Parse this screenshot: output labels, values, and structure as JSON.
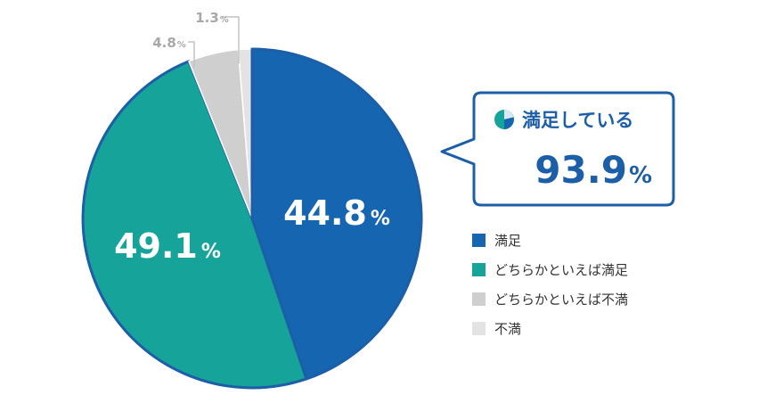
{
  "chart_data": {
    "type": "pie",
    "title": "",
    "categories": [
      "満足",
      "どちらかといえば満足",
      "どちらかといえば不満",
      "不満"
    ],
    "values": [
      44.8,
      49.1,
      4.8,
      1.3
    ],
    "value_labels": [
      {
        "num": "44.8",
        "unit": "%"
      },
      {
        "num": "49.1",
        "unit": "%"
      },
      {
        "num": "4.8",
        "unit": "%"
      },
      {
        "num": "1.3",
        "unit": "%"
      }
    ],
    "colors": [
      "#1565b0",
      "#16a399",
      "#cfcfcf",
      "#e3e3e3"
    ],
    "highlighted_slice": 0,
    "start_angle": "12 o'clock",
    "direction": "clockwise",
    "legend_position": "right",
    "callout": {
      "title": "満足している",
      "value": "93.9",
      "unit": "%",
      "icon": "pie-icon"
    }
  }
}
